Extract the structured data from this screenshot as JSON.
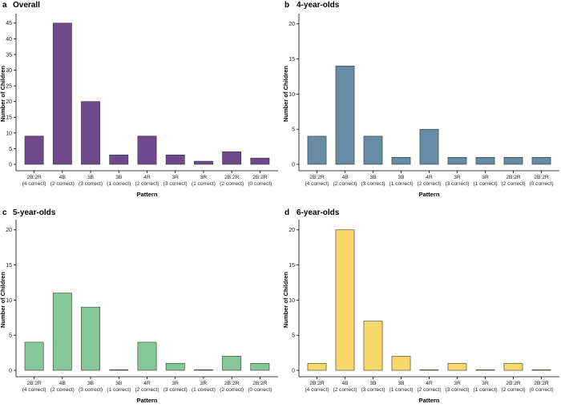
{
  "figure": {
    "xlabel": "Pattern",
    "ylabel": "Number of Children"
  },
  "chart_data": [
    {
      "type": "bar",
      "letter": "a",
      "title": "Overall",
      "color": "#6e4a8c",
      "categories": [
        "2B:2R",
        "4B",
        "3B",
        "3B",
        "4R",
        "3R",
        "3R",
        "2B:2R",
        "2B:2R"
      ],
      "sublabels": [
        "(4 correct)",
        "(2 correct)",
        "(3 correct)",
        "(1 correct)",
        "(2 correct)",
        "(3 correct)",
        "(1 correct)",
        "(2 correct)",
        "(0 correct)"
      ],
      "values": [
        9,
        45,
        20,
        3,
        9,
        3,
        1,
        4,
        2
      ],
      "ylim": [
        0,
        47
      ],
      "yticks": [
        0,
        5,
        10,
        15,
        20,
        25,
        30,
        35,
        40,
        45
      ],
      "xlabel": "Pattern",
      "ylabel": "Number of Children"
    },
    {
      "type": "bar",
      "letter": "b",
      "title": "4-year-olds",
      "color": "#668ba4",
      "categories": [
        "2B:2R",
        "4B",
        "3B",
        "3B",
        "4R",
        "3R",
        "3R",
        "2B:2R",
        "2B:2R"
      ],
      "sublabels": [
        "(4 correct)",
        "(2 correct)",
        "(3 correct)",
        "(1 correct)",
        "(2 correct)",
        "(3 correct)",
        "(1 correct)",
        "(2 correct)",
        "(0 correct)"
      ],
      "values": [
        4,
        14,
        4,
        1,
        5,
        1,
        1,
        1,
        1
      ],
      "ylim": [
        0,
        21
      ],
      "yticks": [
        0,
        5,
        10,
        15,
        20
      ],
      "xlabel": "Pattern",
      "ylabel": "Number of Children"
    },
    {
      "type": "bar",
      "letter": "c",
      "title": "5-year-olds",
      "color": "#85c799",
      "categories": [
        "2B:2R",
        "4B",
        "3B",
        "3B",
        "4R",
        "3R",
        "3R",
        "2B:2R",
        "2B:2R"
      ],
      "sublabels": [
        "(4 correct)",
        "(2 correct)",
        "(3 correct)",
        "(1 correct)",
        "(2 correct)",
        "(3 correct)",
        "(1 correct)",
        "(2 correct)",
        "(0 correct)"
      ],
      "values": [
        4,
        11,
        9,
        0,
        4,
        1,
        0,
        2,
        1
      ],
      "ylim": [
        0,
        21
      ],
      "yticks": [
        0,
        5,
        10,
        15,
        20
      ],
      "xlabel": "Pattern",
      "ylabel": "Number of Children"
    },
    {
      "type": "bar",
      "letter": "d",
      "title": "6-year-olds",
      "color": "#f7d86a",
      "categories": [
        "2B:2R",
        "4B",
        "3B",
        "3B",
        "4R",
        "3R",
        "3R",
        "2B:2R",
        "2B:2R"
      ],
      "sublabels": [
        "(4 correct)",
        "(2 correct)",
        "(3 correct)",
        "(1 correct)",
        "(2 correct)",
        "(3 correct)",
        "(1 correct)",
        "(2 correct)",
        "(0 correct)"
      ],
      "values": [
        1,
        20,
        7,
        2,
        0,
        1,
        0,
        1,
        0
      ],
      "ylim": [
        0,
        21
      ],
      "yticks": [
        0,
        5,
        10,
        15,
        20
      ],
      "xlabel": "Pattern",
      "ylabel": "Number of Children"
    }
  ]
}
